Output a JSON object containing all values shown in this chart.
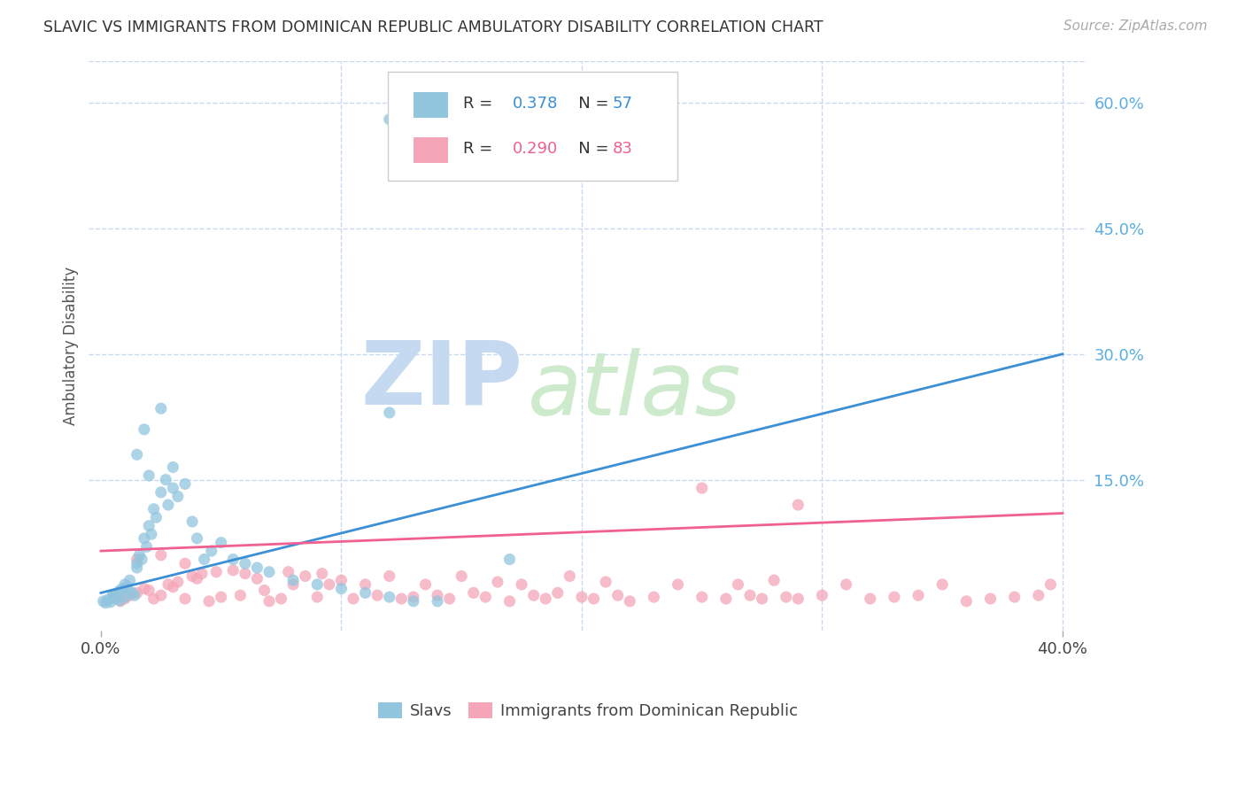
{
  "title": "SLAVIC VS IMMIGRANTS FROM DOMINICAN REPUBLIC AMBULATORY DISABILITY CORRELATION CHART",
  "source": "Source: ZipAtlas.com",
  "ylabel": "Ambulatory Disability",
  "right_yticks": [
    "60.0%",
    "45.0%",
    "30.0%",
    "15.0%"
  ],
  "right_ytick_vals": [
    0.6,
    0.45,
    0.3,
    0.15
  ],
  "xlim": [
    0.0,
    0.4
  ],
  "ylim": [
    -0.03,
    0.65
  ],
  "blue_color": "#92c5de",
  "pink_color": "#f4a6b8",
  "blue_line_color": "#3b8fd4",
  "pink_line_color": "#f06090",
  "right_tick_color": "#5baee0",
  "background_color": "#ffffff",
  "grid_color": "#c8d8ee",
  "slavs_x": [
    0.001,
    0.002,
    0.003,
    0.004,
    0.005,
    0.005,
    0.006,
    0.006,
    0.007,
    0.008,
    0.008,
    0.009,
    0.01,
    0.01,
    0.011,
    0.012,
    0.013,
    0.014,
    0.015,
    0.015,
    0.016,
    0.017,
    0.018,
    0.019,
    0.02,
    0.021,
    0.022,
    0.023,
    0.025,
    0.027,
    0.028,
    0.03,
    0.032,
    0.035,
    0.038,
    0.04,
    0.043,
    0.046,
    0.05,
    0.055,
    0.06,
    0.065,
    0.07,
    0.08,
    0.09,
    0.1,
    0.11,
    0.12,
    0.13,
    0.14,
    0.015,
    0.018,
    0.02,
    0.025,
    0.03,
    0.12,
    0.17
  ],
  "slavs_y": [
    0.005,
    0.003,
    0.007,
    0.004,
    0.01,
    0.013,
    0.008,
    0.012,
    0.015,
    0.006,
    0.018,
    0.02,
    0.025,
    0.01,
    0.022,
    0.03,
    0.015,
    0.012,
    0.05,
    0.045,
    0.06,
    0.055,
    0.08,
    0.07,
    0.095,
    0.085,
    0.115,
    0.105,
    0.135,
    0.15,
    0.12,
    0.14,
    0.13,
    0.145,
    0.1,
    0.08,
    0.055,
    0.065,
    0.075,
    0.055,
    0.05,
    0.045,
    0.04,
    0.03,
    0.025,
    0.02,
    0.015,
    0.01,
    0.005,
    0.005,
    0.18,
    0.21,
    0.155,
    0.235,
    0.165,
    0.23,
    0.055
  ],
  "slavs_outlier_x": [
    0.12
  ],
  "slavs_outlier_y": [
    0.58
  ],
  "dr_x": [
    0.005,
    0.008,
    0.01,
    0.012,
    0.015,
    0.018,
    0.02,
    0.022,
    0.025,
    0.028,
    0.03,
    0.032,
    0.035,
    0.038,
    0.04,
    0.042,
    0.045,
    0.048,
    0.05,
    0.055,
    0.058,
    0.06,
    0.065,
    0.068,
    0.07,
    0.075,
    0.078,
    0.08,
    0.085,
    0.09,
    0.092,
    0.095,
    0.1,
    0.105,
    0.11,
    0.115,
    0.12,
    0.125,
    0.13,
    0.135,
    0.14,
    0.145,
    0.15,
    0.155,
    0.16,
    0.165,
    0.17,
    0.175,
    0.18,
    0.185,
    0.19,
    0.195,
    0.2,
    0.205,
    0.21,
    0.215,
    0.22,
    0.23,
    0.24,
    0.25,
    0.26,
    0.265,
    0.27,
    0.275,
    0.28,
    0.285,
    0.29,
    0.3,
    0.31,
    0.32,
    0.33,
    0.34,
    0.35,
    0.36,
    0.37,
    0.38,
    0.39,
    0.395,
    0.015,
    0.025,
    0.035,
    0.25,
    0.29
  ],
  "dr_y": [
    0.01,
    0.005,
    0.008,
    0.012,
    0.015,
    0.02,
    0.018,
    0.008,
    0.012,
    0.025,
    0.022,
    0.028,
    0.008,
    0.035,
    0.032,
    0.038,
    0.005,
    0.04,
    0.01,
    0.042,
    0.012,
    0.038,
    0.032,
    0.018,
    0.005,
    0.008,
    0.04,
    0.025,
    0.035,
    0.01,
    0.038,
    0.025,
    0.03,
    0.008,
    0.025,
    0.012,
    0.035,
    0.008,
    0.01,
    0.025,
    0.012,
    0.008,
    0.035,
    0.015,
    0.01,
    0.028,
    0.005,
    0.025,
    0.012,
    0.008,
    0.015,
    0.035,
    0.01,
    0.008,
    0.028,
    0.012,
    0.005,
    0.01,
    0.025,
    0.01,
    0.008,
    0.025,
    0.012,
    0.008,
    0.03,
    0.01,
    0.008,
    0.012,
    0.025,
    0.008,
    0.01,
    0.012,
    0.025,
    0.005,
    0.008,
    0.01,
    0.012,
    0.025,
    0.055,
    0.06,
    0.05,
    0.14,
    0.12
  ],
  "slavs_line_x": [
    0.0,
    0.4
  ],
  "slavs_line_y": [
    0.015,
    0.3
  ],
  "dr_line_x": [
    0.0,
    0.4
  ],
  "dr_line_y": [
    0.065,
    0.11
  ]
}
